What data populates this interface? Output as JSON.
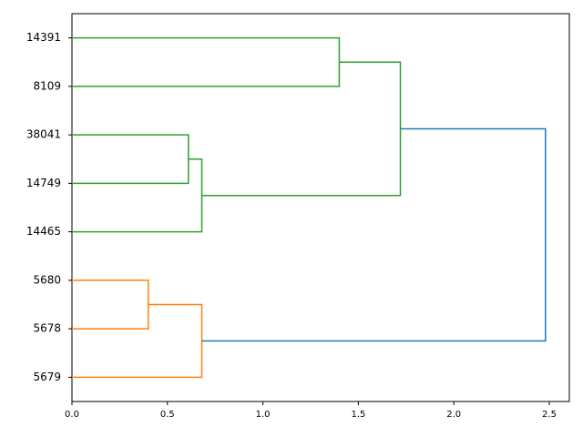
{
  "chart_data": {
    "type": "dendrogram",
    "orientation": "left",
    "leaves": [
      "14391",
      "8109",
      "38041",
      "14749",
      "14465",
      "5680",
      "5678",
      "5679"
    ],
    "links": [
      {
        "children": [
          0,
          1
        ],
        "height": 1.4,
        "color": "#2ca02c"
      },
      {
        "children": [
          2,
          3
        ],
        "height": 0.61,
        "color": "#2ca02c"
      },
      {
        "children": [
          9,
          4
        ],
        "height": 0.68,
        "color": "#2ca02c"
      },
      {
        "children": [
          8,
          10
        ],
        "height": 1.72,
        "color": "#2ca02c"
      },
      {
        "children": [
          5,
          6
        ],
        "height": 0.4,
        "color": "#ff7f0e"
      },
      {
        "children": [
          12,
          7
        ],
        "height": 0.68,
        "color": "#ff7f0e"
      },
      {
        "children": [
          11,
          13
        ],
        "height": 2.48,
        "color": "#1f77b4"
      }
    ],
    "xlim": [
      0,
      2.605
    ],
    "xticks": [
      {
        "value": 0,
        "label": "0.0"
      },
      {
        "value": 0.5,
        "label": "0.5"
      },
      {
        "value": 1,
        "label": "1.0"
      },
      {
        "value": 1.5,
        "label": "1.5"
      },
      {
        "value": 2,
        "label": "2.0"
      },
      {
        "value": 2.5,
        "label": "2.5"
      }
    ]
  }
}
